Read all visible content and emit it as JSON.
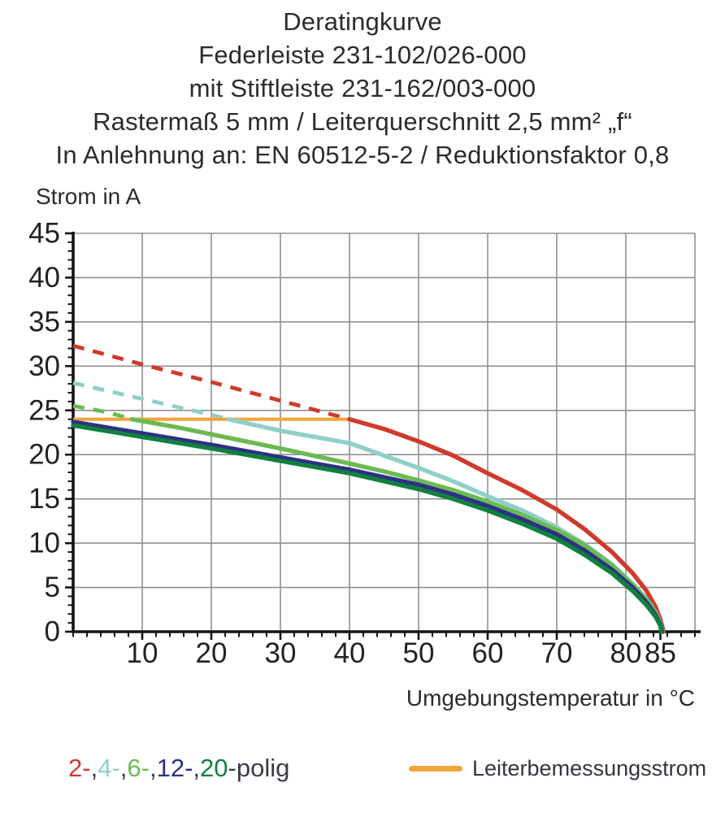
{
  "chart_data": {
    "type": "line",
    "title_lines": [
      "Deratingkurve",
      "Federleiste 231-102/026-000",
      "mit Stiftleiste 231-162/003-000",
      "Rastermaß 5 mm / Leiterquerschnitt 2,5 mm² „f“",
      "In Anlehnung an: EN 60512-5-2 / Reduktionsfaktor 0,8"
    ],
    "x_label": "Umgebungstemperatur in °C",
    "y_label": "Strom in A",
    "x_range": [
      0,
      90
    ],
    "y_range": [
      0,
      45
    ],
    "x_major_ticks": [
      10,
      20,
      30,
      40,
      50,
      60,
      70,
      80,
      85
    ],
    "y_major_ticks": [
      0,
      5,
      10,
      15,
      20,
      25,
      30,
      35,
      40,
      45
    ],
    "x_minor_step": 2,
    "y_minor_step": 1,
    "grid": {
      "x_step": 10,
      "y_step": 5,
      "color": "#909090"
    },
    "axis_color": "#141414",
    "rated_current": {
      "label": "Leiterbemessungsstrom",
      "value": 24,
      "t_start": 0,
      "t_end": 40,
      "color": "#f2a43c"
    },
    "series": [
      {
        "name": "2-polig",
        "legend_label": "2-",
        "color": "#cf3a2c",
        "dashed_points": [
          [
            0,
            32.3
          ],
          [
            10,
            30.2
          ],
          [
            20,
            28.2
          ],
          [
            30,
            26.1
          ],
          [
            40,
            24
          ]
        ],
        "solid_points": [
          [
            40,
            24
          ],
          [
            45,
            22.9
          ],
          [
            50,
            21.5
          ],
          [
            55,
            19.9
          ],
          [
            60,
            17.9
          ],
          [
            65,
            16.0
          ],
          [
            70,
            13.8
          ],
          [
            74,
            11.6
          ],
          [
            78,
            9.0
          ],
          [
            81,
            6.6
          ],
          [
            83,
            4.6
          ],
          [
            84.3,
            2.8
          ],
          [
            85,
            1.4
          ],
          [
            85.45,
            0
          ]
        ]
      },
      {
        "name": "4-polig",
        "legend_label": "4-",
        "color": "#8fd0c9",
        "dashed_points": [
          [
            0,
            28.1
          ],
          [
            10,
            26.3
          ],
          [
            20,
            24.5
          ],
          [
            22.5,
            24
          ]
        ],
        "solid_points": [
          [
            22.5,
            24
          ],
          [
            30,
            22.7
          ],
          [
            40,
            21.3
          ],
          [
            45,
            19.9
          ],
          [
            50,
            18.5
          ],
          [
            55,
            17.0
          ],
          [
            60,
            15.3
          ],
          [
            65,
            13.7
          ],
          [
            70,
            11.8
          ],
          [
            74,
            9.9
          ],
          [
            78,
            7.6
          ],
          [
            81,
            5.4
          ],
          [
            83,
            3.7
          ],
          [
            84.3,
            2.2
          ],
          [
            85,
            1.0
          ],
          [
            85.3,
            0
          ]
        ]
      },
      {
        "name": "6-polig",
        "legend_label": "6-",
        "color": "#6cba52",
        "dashed_points": [
          [
            0,
            25.5
          ],
          [
            5,
            24.8
          ],
          [
            8.5,
            24
          ]
        ],
        "solid_points": [
          [
            8.5,
            24
          ],
          [
            15,
            23.1
          ],
          [
            20,
            22.3
          ],
          [
            30,
            20.7
          ],
          [
            40,
            19.0
          ],
          [
            45,
            18.1
          ],
          [
            50,
            17.1
          ],
          [
            55,
            16.0
          ],
          [
            60,
            14.7
          ],
          [
            65,
            13.2
          ],
          [
            70,
            11.5
          ],
          [
            74,
            9.8
          ],
          [
            78,
            7.5
          ],
          [
            81,
            5.3
          ],
          [
            83,
            3.6
          ],
          [
            84.3,
            2.1
          ],
          [
            85,
            0.9
          ],
          [
            85.3,
            0
          ]
        ]
      },
      {
        "name": "12-polig",
        "legend_label": "12-",
        "color": "#2d3184",
        "dashed_points": [],
        "solid_points": [
          [
            0,
            23.7
          ],
          [
            10,
            22.4
          ],
          [
            20,
            21.1
          ],
          [
            30,
            19.7
          ],
          [
            40,
            18.3
          ],
          [
            50,
            16.6
          ],
          [
            55,
            15.5
          ],
          [
            60,
            14.2
          ],
          [
            65,
            12.7
          ],
          [
            70,
            11.0
          ],
          [
            74,
            9.2
          ],
          [
            78,
            7.0
          ],
          [
            81,
            5.0
          ],
          [
            83,
            3.3
          ],
          [
            84.3,
            1.9
          ],
          [
            85,
            0.8
          ],
          [
            85.25,
            0
          ]
        ]
      },
      {
        "name": "20-polig",
        "legend_label": "20",
        "color": "#11803f",
        "dashed_points": [],
        "solid_points": [
          [
            0,
            23.3
          ],
          [
            10,
            22.0
          ],
          [
            20,
            20.7
          ],
          [
            30,
            19.3
          ],
          [
            40,
            17.9
          ],
          [
            50,
            16.1
          ],
          [
            55,
            15.0
          ],
          [
            60,
            13.7
          ],
          [
            65,
            12.2
          ],
          [
            70,
            10.5
          ],
          [
            74,
            8.7
          ],
          [
            78,
            6.6
          ],
          [
            81,
            4.6
          ],
          [
            83,
            3.0
          ],
          [
            84.3,
            1.7
          ],
          [
            85,
            0.7
          ],
          [
            85.15,
            0
          ]
        ]
      }
    ],
    "legend": {
      "separator": ", ",
      "suffix": "-polig",
      "rated_label": "Leiterbemessungsstrom"
    }
  }
}
